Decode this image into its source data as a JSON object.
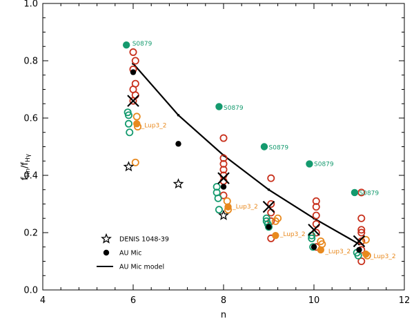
{
  "chart_data": {
    "type": "scatter",
    "title": "",
    "xlabel": "n",
    "ylabel_main": "f",
    "ylabel_num_sub": "Hn",
    "ylabel_den_sub": "Hγ",
    "xlim": [
      4,
      12
    ],
    "ylim": [
      0.0,
      1.0
    ],
    "x_ticks": [
      "4",
      "6",
      "8",
      "10",
      "12"
    ],
    "y_ticks": [
      "0.0",
      "0.2",
      "0.4",
      "0.6",
      "0.8",
      "1.0"
    ],
    "colors": {
      "green": "#149a6e",
      "orange": "#e8891e",
      "red": "#c8301c",
      "black": "#000000"
    },
    "series": [
      {
        "name": "AU Mic model",
        "type": "line",
        "color": "#000000",
        "x": [
          6,
          7,
          8,
          9,
          10,
          11
        ],
        "y": [
          0.79,
          0.61,
          0.47,
          0.35,
          0.25,
          0.16
        ]
      },
      {
        "name": "AU Mic",
        "type": "filled-circle",
        "color": "#000000",
        "x": [
          6.0,
          7.0,
          8.0,
          9.0,
          10.0,
          11.0
        ],
        "y": [
          0.76,
          0.51,
          0.36,
          0.22,
          0.15,
          0.14
        ]
      },
      {
        "name": "DENIS 1048-39",
        "type": "star",
        "color": "#000000",
        "x": [
          5.9,
          7.0,
          8.0
        ],
        "y": [
          0.43,
          0.37,
          0.26
        ]
      },
      {
        "name": "S0879",
        "type": "filled-circle",
        "color": "#149a6e",
        "x": [
          5.85,
          7.9,
          8.9,
          9.9,
          10.9
        ],
        "y": [
          0.855,
          0.64,
          0.5,
          0.44,
          0.34
        ]
      },
      {
        "name": "Lup3_2",
        "type": "filled-circle",
        "color": "#e8891e",
        "x": [
          6.08,
          8.1,
          9.15,
          10.15,
          11.15
        ],
        "y": [
          0.58,
          0.29,
          0.19,
          0.14,
          0.125
        ]
      },
      {
        "name": "red open",
        "type": "open-circle",
        "color": "#c8301c",
        "x": [
          6.0,
          6.05,
          6.0,
          6.05,
          6.0,
          6.05,
          6.0,
          8.0,
          8.0,
          8.0,
          8.0,
          8.0,
          8.0,
          8.0,
          9.05,
          9.05,
          9.05,
          9.05,
          9.05,
          10.05,
          10.05,
          10.05,
          10.05,
          10.05,
          10.05,
          11.05,
          11.05,
          11.05,
          11.05,
          11.05,
          11.05,
          11.05
        ],
        "y": [
          0.83,
          0.8,
          0.77,
          0.72,
          0.7,
          0.68,
          0.66,
          0.53,
          0.46,
          0.44,
          0.42,
          0.4,
          0.38,
          0.33,
          0.39,
          0.3,
          0.27,
          0.24,
          0.18,
          0.31,
          0.29,
          0.26,
          0.23,
          0.2,
          0.15,
          0.34,
          0.25,
          0.21,
          0.2,
          0.17,
          0.14,
          0.1
        ]
      },
      {
        "name": "green open",
        "type": "open-circle",
        "color": "#149a6e",
        "x": [
          5.88,
          5.9,
          5.9,
          5.92,
          7.85,
          7.85,
          7.88,
          7.9,
          8.95,
          8.95,
          8.98,
          9.0,
          9.95,
          9.95,
          9.98,
          10.95,
          10.98
        ],
        "y": [
          0.62,
          0.61,
          0.58,
          0.55,
          0.36,
          0.34,
          0.32,
          0.28,
          0.25,
          0.24,
          0.23,
          0.22,
          0.19,
          0.18,
          0.15,
          0.13,
          0.12
        ]
      },
      {
        "name": "orange open",
        "type": "open-circle",
        "color": "#e8891e",
        "x": [
          6.08,
          6.1,
          6.05,
          8.08,
          8.1,
          9.15,
          9.2,
          10.15,
          10.18,
          11.15,
          11.18
        ],
        "y": [
          0.605,
          0.57,
          0.445,
          0.31,
          0.28,
          0.24,
          0.25,
          0.17,
          0.16,
          0.175,
          0.12
        ]
      },
      {
        "name": "X markers",
        "type": "x-marker",
        "color": "#000000",
        "x": [
          6.0,
          8.0,
          9.0,
          10.0,
          11.0
        ],
        "y": [
          0.66,
          0.39,
          0.29,
          0.21,
          0.17
        ]
      }
    ],
    "annotations": [
      {
        "text": "S0879",
        "x": 5.98,
        "y": 0.86,
        "color": "#149a6e"
      },
      {
        "text": "S0879",
        "x": 8.0,
        "y": 0.636,
        "color": "#149a6e"
      },
      {
        "text": "S0879",
        "x": 9.0,
        "y": 0.498,
        "color": "#149a6e"
      },
      {
        "text": "S0879",
        "x": 10.0,
        "y": 0.44,
        "color": "#149a6e"
      },
      {
        "text": "S0879",
        "x": 11.0,
        "y": 0.338,
        "color": "#149a6e"
      },
      {
        "text": "_Lup3_2",
        "x": 6.18,
        "y": 0.575,
        "color": "#e8891e"
      },
      {
        "text": "_Lup3_2",
        "x": 8.2,
        "y": 0.292,
        "color": "#e8891e"
      },
      {
        "text": "_Lup3_2",
        "x": 9.25,
        "y": 0.195,
        "color": "#e8891e"
      },
      {
        "text": "_Lup3_2",
        "x": 10.25,
        "y": 0.135,
        "color": "#e8891e"
      },
      {
        "text": "_Lup3_2",
        "x": 11.25,
        "y": 0.118,
        "color": "#e8891e"
      }
    ],
    "legend": {
      "position": "lower-left",
      "items": [
        {
          "label": "DENIS 1048-39",
          "symbol": "star"
        },
        {
          "label": "AU Mic",
          "symbol": "filled-circle"
        },
        {
          "label": "AU Mic model",
          "symbol": "line"
        }
      ]
    }
  }
}
